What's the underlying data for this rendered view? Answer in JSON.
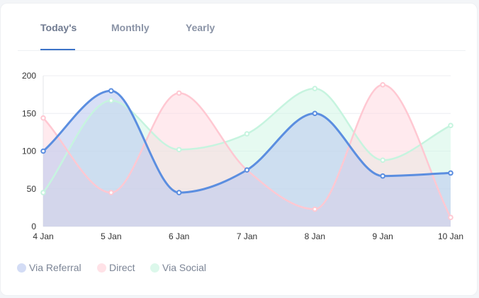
{
  "tabs": [
    {
      "label": "Today's",
      "active": true
    },
    {
      "label": "Monthly",
      "active": false
    },
    {
      "label": "Yearly",
      "active": false
    }
  ],
  "chart_data": {
    "type": "area",
    "categories": [
      "4 Jan",
      "5 Jan",
      "6 Jan",
      "7 Jan",
      "8 Jan",
      "9 Jan",
      "10 Jan"
    ],
    "ylim": [
      0,
      200
    ],
    "yticks": [
      0,
      50,
      100,
      150,
      200
    ],
    "grid": true,
    "legend": "bottom-left",
    "smooth": true,
    "series": [
      {
        "name": "Via Referral",
        "values": [
          100,
          180,
          45,
          75,
          150,
          67,
          71
        ],
        "line_color": "#5b8ee0",
        "fill_color": "#b8c6ee",
        "fill_opacity": 0.55
      },
      {
        "name": "Direct",
        "values": [
          144,
          45,
          177,
          75,
          23,
          188,
          12
        ],
        "line_color": "#ffc8d2",
        "fill_color": "#ffd6dd",
        "fill_opacity": 0.5
      },
      {
        "name": "Via Social",
        "values": [
          45,
          167,
          102,
          123,
          183,
          88,
          134
        ],
        "line_color": "#c6f4df",
        "fill_color": "#cdf6e3",
        "fill_opacity": 0.5
      }
    ]
  }
}
